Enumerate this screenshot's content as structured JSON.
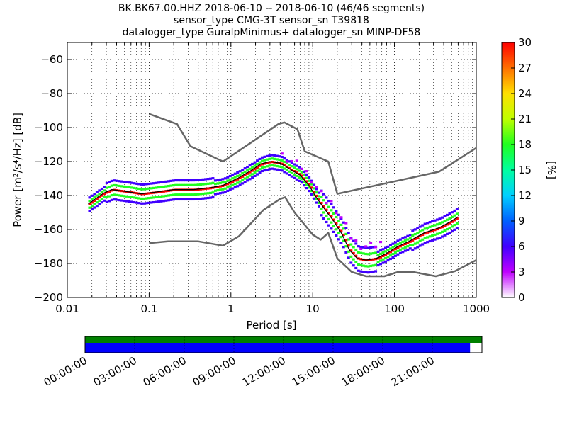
{
  "chart_data": {
    "type": "heatmap",
    "title_lines": [
      "BK.BK67.00.HHZ   2018-06-10 -- 2018-06-10  (46/46 segments)",
      "sensor_type CMG-3T sensor_sn T39818",
      "datalogger_type GuralpMinimus+ datalogger_sn MINP-DF58"
    ],
    "xlabel": "Period [s]",
    "ylabel": "Power [m²/s⁴/Hz] [dB]",
    "x_scale": "log",
    "xlim": [
      0.01,
      1000
    ],
    "ylim": [
      -200,
      -50
    ],
    "x_ticks": [
      {
        "value": 0.01,
        "label": "0.01"
      },
      {
        "value": 0.1,
        "label": "0.1"
      },
      {
        "value": 1,
        "label": "1"
      },
      {
        "value": 10,
        "label": "10"
      },
      {
        "value": 100,
        "label": "100"
      },
      {
        "value": 1000,
        "label": "1000"
      }
    ],
    "y_ticks": [
      {
        "value": -200,
        "label": "−200"
      },
      {
        "value": -180,
        "label": "−180"
      },
      {
        "value": -160,
        "label": "−160"
      },
      {
        "value": -140,
        "label": "−140"
      },
      {
        "value": -120,
        "label": "−120"
      },
      {
        "value": -100,
        "label": "−100"
      },
      {
        "value": -80,
        "label": "−80"
      },
      {
        "value": -60,
        "label": "−60"
      }
    ],
    "grid": true,
    "colorbar": {
      "label": "[%]",
      "range": [
        0,
        30
      ],
      "ticks": [
        "0",
        "3",
        "6",
        "9",
        "12",
        "15",
        "18",
        "21",
        "24",
        "27",
        "30"
      ]
    },
    "series": [
      {
        "kind": "noise-model-high",
        "color": "#666666",
        "points": [
          [
            0.1,
            -92
          ],
          [
            0.22,
            -98
          ],
          [
            0.32,
            -111
          ],
          [
            0.8,
            -120
          ],
          [
            3.8,
            -98
          ],
          [
            4.5,
            -97
          ],
          [
            6.5,
            -101
          ],
          [
            8,
            -114
          ],
          [
            15.5,
            -120
          ],
          [
            20,
            -139
          ],
          [
            350,
            -126
          ],
          [
            1000,
            -112
          ]
        ]
      },
      {
        "kind": "noise-model-low",
        "color": "#666666",
        "points": [
          [
            0.1,
            -168
          ],
          [
            0.17,
            -167
          ],
          [
            0.4,
            -167
          ],
          [
            0.8,
            -169.5
          ],
          [
            1.25,
            -164
          ],
          [
            2.5,
            -148.5
          ],
          [
            4,
            -142
          ],
          [
            4.6,
            -141
          ],
          [
            6,
            -150
          ],
          [
            10,
            -163
          ],
          [
            12.5,
            -166
          ],
          [
            15.5,
            -162
          ],
          [
            20,
            -177
          ],
          [
            30,
            -185
          ],
          [
            45,
            -187.5
          ],
          [
            75,
            -187.5
          ],
          [
            110,
            -185
          ],
          [
            170,
            -185
          ],
          [
            320,
            -187.5
          ],
          [
            550,
            -184.5
          ],
          [
            1000,
            -178
          ]
        ]
      },
      {
        "kind": "mode",
        "color": "#000000",
        "points": [
          [
            0.018,
            -145
          ],
          [
            0.022,
            -142
          ],
          [
            0.028,
            -138.5
          ],
          [
            0.035,
            -136.5
          ],
          [
            0.05,
            -137.5
          ],
          [
            0.08,
            -139
          ],
          [
            0.12,
            -138
          ],
          [
            0.2,
            -136.5
          ],
          [
            0.35,
            -136.5
          ],
          [
            0.55,
            -135.5
          ],
          [
            0.8,
            -134
          ],
          [
            1.2,
            -130
          ],
          [
            1.8,
            -125
          ],
          [
            2.3,
            -121.5
          ],
          [
            3,
            -120
          ],
          [
            4,
            -121
          ],
          [
            5.5,
            -125
          ],
          [
            7,
            -128
          ],
          [
            9,
            -134
          ],
          [
            11,
            -141
          ],
          [
            14,
            -148
          ],
          [
            18,
            -155
          ],
          [
            23,
            -163
          ],
          [
            28,
            -172
          ],
          [
            35,
            -177
          ],
          [
            45,
            -178
          ],
          [
            60,
            -177
          ],
          [
            80,
            -174
          ],
          [
            110,
            -170
          ],
          [
            150,
            -167
          ],
          [
            230,
            -162
          ],
          [
            350,
            -159
          ],
          [
            480,
            -155.5
          ],
          [
            600,
            -152.5
          ]
        ]
      }
    ],
    "time_axis": {
      "tick_labels": [
        "00:00:00",
        "03:00:00",
        "06:00:00",
        "09:00:00",
        "12:00:00",
        "15:00:00",
        "18:00:00",
        "21:00:00"
      ],
      "coverage_fraction": 0.97,
      "data_color": "#0000ff",
      "gap_color": "#ffffff",
      "segment_color": "#008000"
    }
  }
}
